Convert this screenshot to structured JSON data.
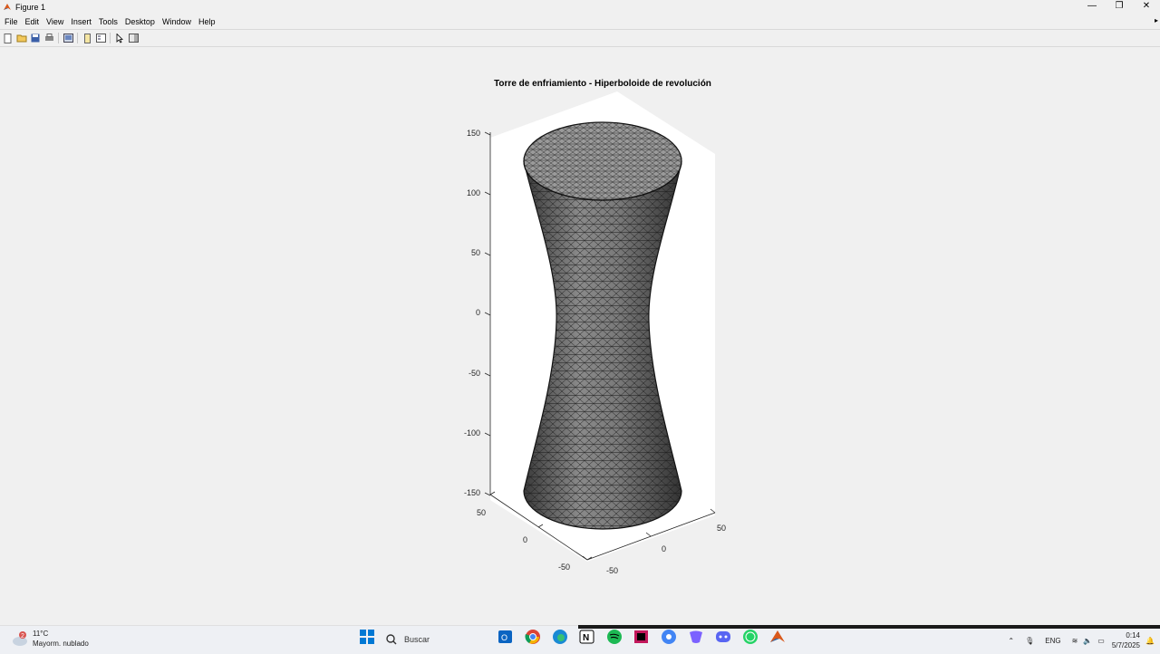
{
  "window": {
    "title": "Figure 1",
    "controls": [
      "—",
      "❐",
      "✕"
    ]
  },
  "menu": [
    "File",
    "Edit",
    "View",
    "Insert",
    "Tools",
    "Desktop",
    "Window",
    "Help"
  ],
  "toolbar_icons": [
    "new-figure-icon",
    "open-file-icon",
    "save-icon",
    "print-icon",
    "link-plot-icon",
    "insert-colorbar-icon",
    "insert-legend-icon",
    "edit-plot-icon",
    "show-plot-tools-icon"
  ],
  "chart_data": {
    "type": "surface",
    "title": "Torre de enfriamiento - Hiperboloide de revolución",
    "surface": "hyperboloid of one sheet (triangulated mesh, gray)",
    "zlim": [
      -150,
      150
    ],
    "xlim": [
      -50,
      50
    ],
    "ylim": [
      -50,
      50
    ],
    "z_ticks": [
      "150",
      "100",
      "50",
      "0",
      "-50",
      "-100",
      "-150"
    ],
    "x_ticks": [
      "-50",
      "0",
      "50"
    ],
    "y_ticks": [
      "-50",
      "0",
      "50"
    ],
    "xlabel": "",
    "ylabel": "",
    "zlabel": ""
  },
  "taskbar": {
    "weather": {
      "badge": "2",
      "temp": "11°C",
      "desc": "Mayorm. nublado"
    },
    "search_placeholder": "Buscar",
    "tray": {
      "lang": "ENG",
      "time": "0:14",
      "date": "5/7/2025"
    }
  }
}
